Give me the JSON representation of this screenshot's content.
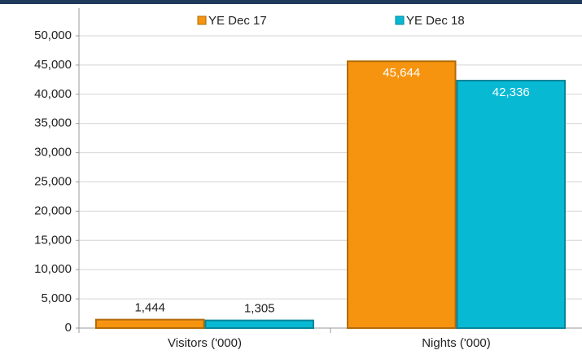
{
  "chart_data": {
    "type": "bar",
    "categories": [
      "Visitors ('000)",
      "Nights ('000)"
    ],
    "series": [
      {
        "name": "YE Dec 17",
        "color": "#f7940f",
        "values": [
          1444,
          45644
        ],
        "value_labels": [
          "1,444",
          "45,644"
        ]
      },
      {
        "name": "YE Dec 18",
        "color": "#08b9d4",
        "values": [
          1305,
          42336
        ],
        "value_labels": [
          "1,305",
          "42,336"
        ]
      }
    ],
    "ylim": [
      0,
      50000
    ],
    "yticks": [
      0,
      {
        "value": 5000,
        "label": "5,000"
      },
      {
        "value": 10000,
        "label": "10,000"
      },
      {
        "value": 15000,
        "label": "15,000"
      },
      {
        "value": 20000,
        "label": "20,000"
      },
      {
        "value": 25000,
        "label": "25,000"
      },
      {
        "value": 30000,
        "label": "30,000"
      },
      {
        "value": 35000,
        "label": "35,000"
      },
      {
        "value": 40000,
        "label": "40,000"
      },
      {
        "value": 45000,
        "label": "45,000"
      },
      {
        "value": 50000,
        "label": "50,000"
      }
    ],
    "grid": true,
    "legend": "top"
  }
}
